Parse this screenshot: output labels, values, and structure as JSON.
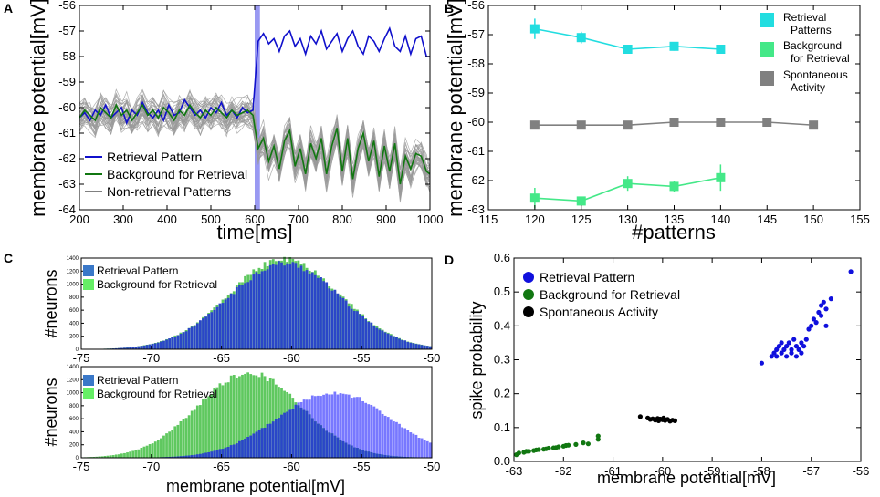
{
  "colors": {
    "blue": "#1010cc",
    "green": "#117711",
    "gray": "#808080",
    "cyan": "#22dde0",
    "lightgreen": "#44e888",
    "black": "#000000",
    "band": "#7777ee",
    "histBlue": "#2a46c8",
    "histGreen": "#5fc85f",
    "histLightBlue": "#7878ff"
  },
  "chart_data": [
    {
      "panel": "A",
      "type": "line",
      "xlabel": "time[ms]",
      "ylabel": "membrane potential[mV]",
      "xlim": [
        200,
        1000
      ],
      "ylim": [
        -64,
        -56
      ],
      "xticks": [
        200,
        300,
        400,
        500,
        600,
        700,
        800,
        900,
        1000
      ],
      "yticks": [
        -64,
        -63,
        -62,
        -61,
        -60,
        -59,
        -58,
        -57,
        -56
      ],
      "highlight_band": [
        600,
        612
      ],
      "x": [
        200,
        212,
        224,
        236,
        248,
        260,
        272,
        284,
        296,
        308,
        320,
        332,
        344,
        356,
        368,
        380,
        392,
        404,
        416,
        428,
        440,
        452,
        464,
        476,
        488,
        500,
        512,
        524,
        536,
        548,
        560,
        572,
        584,
        596,
        608,
        620,
        632,
        644,
        656,
        668,
        680,
        692,
        704,
        716,
        728,
        740,
        752,
        764,
        776,
        788,
        800,
        812,
        824,
        836,
        848,
        860,
        872,
        884,
        896,
        908,
        920,
        932,
        944,
        956,
        968,
        980,
        992,
        1000
      ],
      "series": [
        {
          "name": "Retrieval Pattern",
          "values": [
            -60.4,
            -60.2,
            -60.5,
            -60.1,
            -60.3,
            -59.9,
            -60.4,
            -60.2,
            -60.0,
            -60.6,
            -60.1,
            -60.3,
            -59.8,
            -60.2,
            -60.4,
            -60.1,
            -60.5,
            -59.9,
            -60.3,
            -60.2,
            -59.7,
            -60.0,
            -60.3,
            -60.1,
            -60.4,
            -60.0,
            -60.2,
            -59.8,
            -60.3,
            -60.1,
            -60.4,
            -60.0,
            -60.2,
            -60.1,
            -57.4,
            -57.1,
            -57.5,
            -57.3,
            -57.8,
            -57.2,
            -57.0,
            -57.6,
            -57.3,
            -57.9,
            -57.2,
            -57.5,
            -57.0,
            -57.7,
            -57.4,
            -57.1,
            -57.8,
            -57.3,
            -57.0,
            -57.6,
            -57.9,
            -57.2,
            -57.4,
            -57.8,
            -57.3,
            -56.9,
            -57.6,
            -57.8,
            -57.2,
            -57.9,
            -57.3,
            -57.2,
            -58.0,
            -58.0
          ]
        },
        {
          "name": "Background for Retrieval",
          "values": [
            -60.4,
            -60.1,
            -60.3,
            -60.5,
            -60.0,
            -60.2,
            -60.4,
            -59.9,
            -60.3,
            -60.1,
            -60.5,
            -60.2,
            -59.9,
            -60.3,
            -60.1,
            -60.4,
            -60.0,
            -60.2,
            -60.5,
            -60.1,
            -60.3,
            -59.9,
            -60.2,
            -60.4,
            -60.1,
            -60.3,
            -60.0,
            -60.2,
            -60.4,
            -60.1,
            -60.3,
            -60.2,
            -60.1,
            -60.3,
            -61.6,
            -61.2,
            -62.1,
            -61.5,
            -62.4,
            -61.3,
            -60.9,
            -62.3,
            -61.6,
            -62.6,
            -61.4,
            -62.0,
            -61.2,
            -62.6,
            -61.5,
            -60.8,
            -62.5,
            -61.2,
            -62.8,
            -61.6,
            -61.0,
            -62.1,
            -61.3,
            -62.7,
            -61.5,
            -62.5,
            -61.4,
            -63.0,
            -61.9,
            -62.4,
            -61.8,
            -61.9,
            -62.5,
            -62.6
          ]
        }
      ],
      "gray_series_label": "Non-retrieval Patterns",
      "legend": [
        "Retrieval Pattern",
        "Background for Retrieval",
        "Non-retrieval Patterns"
      ]
    },
    {
      "panel": "B",
      "type": "line",
      "xlabel": "#patterns",
      "ylabel": "membrane potential[mV]",
      "xlim": [
        115,
        155
      ],
      "ylim": [
        -63,
        -56
      ],
      "xticks": [
        115,
        120,
        125,
        130,
        135,
        140,
        145,
        150,
        155
      ],
      "yticks": [
        -63,
        -62,
        -61,
        -60,
        -59,
        -58,
        -57,
        -56
      ],
      "series": [
        {
          "name": "Retrieval Patterns",
          "x": [
            120,
            125,
            130,
            135,
            140
          ],
          "values": [
            -56.8,
            -57.1,
            -57.5,
            -57.4,
            -57.5
          ],
          "err": [
            0.35,
            0.2,
            0.15,
            0.15,
            0.15
          ]
        },
        {
          "name": "Background for Retrieval",
          "x": [
            120,
            125,
            130,
            135,
            140
          ],
          "values": [
            -62.6,
            -62.7,
            -62.1,
            -62.2,
            -61.9
          ],
          "err": [
            0.35,
            0.15,
            0.25,
            0.2,
            0.45
          ]
        },
        {
          "name": "Spontaneous Activity",
          "x": [
            120,
            125,
            130,
            135,
            140,
            145,
            150
          ],
          "values": [
            -60.1,
            -60.1,
            -60.1,
            -60.0,
            -60.0,
            -60.0,
            -60.1
          ],
          "err": [
            0,
            0,
            0,
            0,
            0,
            0,
            0
          ]
        }
      ],
      "legend": [
        {
          "line1": "Retrieval",
          "line2": "Patterns"
        },
        {
          "line1": "Background",
          "line2": "for Retrieval"
        },
        {
          "line1": "Spontaneous",
          "line2": "Activity"
        }
      ]
    },
    {
      "panel": "C",
      "type": "histogram",
      "ylabel": "#neurons",
      "xlabel": "membrane potential[mV]",
      "xlim": [
        -75,
        -50
      ],
      "xticks": [
        -75,
        -70,
        -65,
        -60,
        -55,
        -50
      ],
      "top": {
        "yticks": [
          0,
          200,
          400,
          600,
          800,
          1000,
          1200,
          1400
        ],
        "ylim": [
          0,
          1400
        ],
        "legend": [
          "Retrieval Pattern",
          "Background for Retrieval"
        ],
        "blue": {
          "mean": -60.5,
          "sd": 4.0,
          "peak": 1320
        },
        "green": {
          "mean": -60.5,
          "sd": 4.0,
          "peak": 1380
        }
      },
      "bottom": {
        "yticks": [
          0,
          200,
          400,
          600,
          800,
          1000,
          1200,
          1400
        ],
        "ylim": [
          0,
          1400
        ],
        "legend": [
          "Retrieval Pattern",
          "Background for Retrieval"
        ],
        "blue": {
          "mean": -57.0,
          "sd": 4.0,
          "peak": 1010
        },
        "green": {
          "mean": -63.0,
          "sd": 3.7,
          "peak": 1300
        }
      }
    },
    {
      "panel": "D",
      "type": "scatter",
      "xlabel": "membrane potential[mV]",
      "ylabel": "spike probability",
      "xlim": [
        -63,
        -56
      ],
      "ylim": [
        0.0,
        0.6
      ],
      "xticks": [
        -63,
        -62,
        -61,
        -60,
        -59,
        -58,
        -57,
        -56
      ],
      "yticks": [
        0.0,
        0.1,
        0.2,
        0.3,
        0.4,
        0.5,
        0.6
      ],
      "series": [
        {
          "name": "Retrieval Pattern",
          "points": [
            [
              -58.0,
              0.29
            ],
            [
              -57.8,
              0.31
            ],
            [
              -57.75,
              0.32
            ],
            [
              -57.7,
              0.33
            ],
            [
              -57.7,
              0.31
            ],
            [
              -57.65,
              0.34
            ],
            [
              -57.6,
              0.32
            ],
            [
              -57.6,
              0.35
            ],
            [
              -57.55,
              0.33
            ],
            [
              -57.5,
              0.34
            ],
            [
              -57.5,
              0.31
            ],
            [
              -57.45,
              0.35
            ],
            [
              -57.4,
              0.33
            ],
            [
              -57.4,
              0.32
            ],
            [
              -57.35,
              0.36
            ],
            [
              -57.3,
              0.34
            ],
            [
              -57.3,
              0.31
            ],
            [
              -57.25,
              0.33
            ],
            [
              -57.2,
              0.35
            ],
            [
              -57.2,
              0.32
            ],
            [
              -57.15,
              0.34
            ],
            [
              -57.1,
              0.36
            ],
            [
              -57.05,
              0.39
            ],
            [
              -57.0,
              0.4
            ],
            [
              -56.95,
              0.42
            ],
            [
              -56.9,
              0.41
            ],
            [
              -56.85,
              0.44
            ],
            [
              -56.8,
              0.46
            ],
            [
              -56.8,
              0.43
            ],
            [
              -56.75,
              0.47
            ],
            [
              -56.7,
              0.45
            ],
            [
              -56.7,
              0.4
            ],
            [
              -56.6,
              0.48
            ],
            [
              -56.2,
              0.56
            ]
          ]
        },
        {
          "name": "Background for Retrieval",
          "points": [
            [
              -62.95,
              0.02
            ],
            [
              -62.9,
              0.025
            ],
            [
              -62.8,
              0.027
            ],
            [
              -62.75,
              0.03
            ],
            [
              -62.7,
              0.03
            ],
            [
              -62.6,
              0.032
            ],
            [
              -62.55,
              0.034
            ],
            [
              -62.5,
              0.035
            ],
            [
              -62.4,
              0.036
            ],
            [
              -62.35,
              0.037
            ],
            [
              -62.3,
              0.039
            ],
            [
              -62.2,
              0.04
            ],
            [
              -62.15,
              0.041
            ],
            [
              -62.1,
              0.043
            ],
            [
              -62.0,
              0.045
            ],
            [
              -61.95,
              0.047
            ],
            [
              -61.9,
              0.048
            ],
            [
              -61.75,
              0.05
            ],
            [
              -61.6,
              0.055
            ],
            [
              -61.5,
              0.052
            ],
            [
              -61.3,
              0.065
            ],
            [
              -61.3,
              0.075
            ]
          ]
        },
        {
          "name": "Spontaneous Activity",
          "points": [
            [
              -60.45,
              0.132
            ],
            [
              -60.3,
              0.128
            ],
            [
              -60.25,
              0.124
            ],
            [
              -60.2,
              0.126
            ],
            [
              -60.15,
              0.122
            ],
            [
              -60.1,
              0.127
            ],
            [
              -60.08,
              0.12
            ],
            [
              -60.05,
              0.125
            ],
            [
              -60.0,
              0.123
            ],
            [
              -59.98,
              0.128
            ],
            [
              -59.95,
              0.121
            ],
            [
              -59.9,
              0.124
            ],
            [
              -59.85,
              0.119
            ],
            [
              -59.8,
              0.122
            ],
            [
              -59.75,
              0.12
            ]
          ]
        }
      ],
      "legend": [
        "Retrieval Pattern",
        "Background for Retrieval",
        "Spontaneous Activity"
      ]
    }
  ],
  "panel_letters": [
    "A",
    "B",
    "C",
    "D"
  ]
}
